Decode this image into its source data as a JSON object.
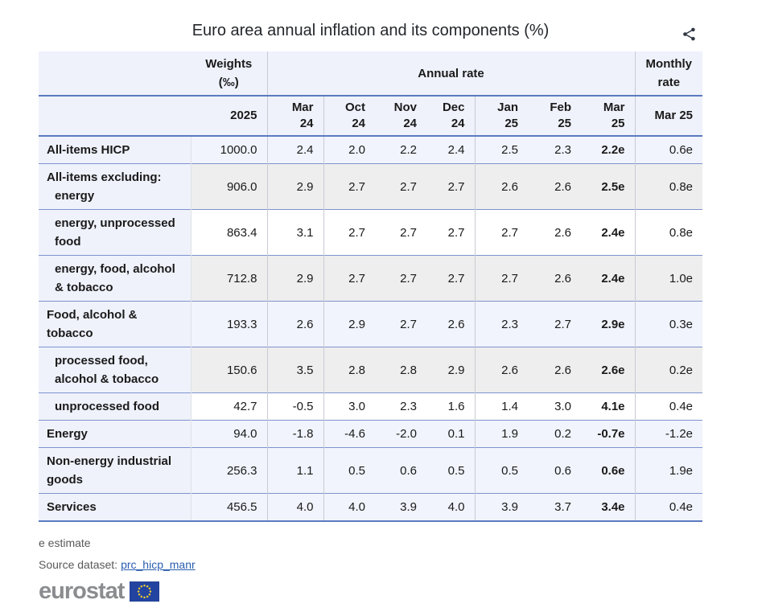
{
  "header": {
    "title": "Euro area annual inflation and its components (%)"
  },
  "chart_data": {
    "type": "table",
    "title": "Euro area annual inflation and its components (%)",
    "column_groups": [
      {
        "key": "weights",
        "label": "Weights (‰)"
      },
      {
        "key": "annual_rate",
        "label": "Annual rate"
      },
      {
        "key": "monthly_rate",
        "label": "Monthly rate"
      }
    ],
    "weights_year": "2025",
    "annual_months": [
      "Mar 24",
      "Oct 24",
      "Nov 24",
      "Dec 24",
      "Jan 25",
      "Feb 25",
      "Mar 25"
    ],
    "monthly_month": "Mar 25",
    "estimate_flag": "e",
    "rows": [
      {
        "label": "All-items HICP",
        "indent": 0,
        "lines": [
          "All-items HICP"
        ],
        "line_indents": [
          0
        ],
        "weight": "1000.0",
        "annual": [
          "2.4",
          "2.0",
          "2.2",
          "2.4",
          "2.5",
          "2.3",
          "2.2e"
        ],
        "monthly": "0.6e",
        "shade": "blue"
      },
      {
        "label": "All-items excluding: energy",
        "indent": 0,
        "lines": [
          "All-items excluding:",
          "energy"
        ],
        "line_indents": [
          0,
          1
        ],
        "weight": "906.0",
        "annual": [
          "2.9",
          "2.7",
          "2.7",
          "2.7",
          "2.6",
          "2.6",
          "2.5e"
        ],
        "monthly": "0.8e",
        "shade": "gray"
      },
      {
        "label": "energy, unprocessed food",
        "indent": 1,
        "lines": [
          "energy, unprocessed",
          "food"
        ],
        "line_indents": [
          1,
          1
        ],
        "weight": "863.4",
        "annual": [
          "3.1",
          "2.7",
          "2.7",
          "2.7",
          "2.7",
          "2.6",
          "2.4e"
        ],
        "monthly": "0.8e",
        "shade": "white"
      },
      {
        "label": "energy, food, alcohol & tobacco",
        "indent": 1,
        "lines": [
          "energy, food, alcohol",
          "& tobacco"
        ],
        "line_indents": [
          1,
          1
        ],
        "weight": "712.8",
        "annual": [
          "2.9",
          "2.7",
          "2.7",
          "2.7",
          "2.7",
          "2.6",
          "2.4e"
        ],
        "monthly": "1.0e",
        "shade": "gray"
      },
      {
        "label": "Food, alcohol & tobacco",
        "indent": 0,
        "lines": [
          "Food, alcohol &",
          "tobacco"
        ],
        "line_indents": [
          0,
          0
        ],
        "weight": "193.3",
        "annual": [
          "2.6",
          "2.9",
          "2.7",
          "2.6",
          "2.3",
          "2.7",
          "2.9e"
        ],
        "monthly": "0.3e",
        "shade": "blue"
      },
      {
        "label": "processed food, alcohol & tobacco",
        "indent": 1,
        "lines": [
          "processed food,",
          "alcohol & tobacco"
        ],
        "line_indents": [
          1,
          1
        ],
        "weight": "150.6",
        "annual": [
          "3.5",
          "2.8",
          "2.8",
          "2.9",
          "2.6",
          "2.6",
          "2.6e"
        ],
        "monthly": "0.2e",
        "shade": "gray"
      },
      {
        "label": "unprocessed food",
        "indent": 1,
        "lines": [
          "unprocessed food"
        ],
        "line_indents": [
          1
        ],
        "weight": "42.7",
        "annual": [
          "-0.5",
          "3.0",
          "2.3",
          "1.6",
          "1.4",
          "3.0",
          "4.1e"
        ],
        "monthly": "0.4e",
        "shade": "white"
      },
      {
        "label": "Energy",
        "indent": 0,
        "lines": [
          "Energy"
        ],
        "line_indents": [
          0
        ],
        "weight": "94.0",
        "annual": [
          "-1.8",
          "-4.6",
          "-2.0",
          "0.1",
          "1.9",
          "0.2",
          "-0.7e"
        ],
        "monthly": "-1.2e",
        "shade": "blue"
      },
      {
        "label": "Non-energy industrial goods",
        "indent": 0,
        "lines": [
          "Non-energy industrial",
          "goods"
        ],
        "line_indents": [
          0,
          0
        ],
        "weight": "256.3",
        "annual": [
          "1.1",
          "0.5",
          "0.6",
          "0.5",
          "0.5",
          "0.6",
          "0.6e"
        ],
        "monthly": "1.9e",
        "shade": "blue"
      },
      {
        "label": "Services",
        "indent": 0,
        "lines": [
          "Services"
        ],
        "line_indents": [
          0
        ],
        "weight": "456.5",
        "annual": [
          "4.0",
          "4.0",
          "3.9",
          "4.0",
          "3.9",
          "3.7",
          "3.4e"
        ],
        "monthly": "0.4e",
        "shade": "blue"
      }
    ]
  },
  "footer": {
    "estimate_note": "e estimate",
    "source_label": "Source dataset:",
    "source_link": "prc_hicp_manr",
    "logo_text": "eurostat"
  },
  "colors": {
    "header_bg": "#eff2fb",
    "row_blue": "#f1f4fc",
    "row_gray": "#eeeeee",
    "row_white": "#ffffff",
    "rule_thick": "#5b7ac1",
    "rule_thin": "#7e93cf",
    "column_divider": "#c8cbd2",
    "link": "#2a5db0",
    "note_text": "#595959",
    "logo_gray": "#8a8c8f",
    "flag_blue": "#2243a0",
    "flag_stars": "#f8d12a"
  }
}
